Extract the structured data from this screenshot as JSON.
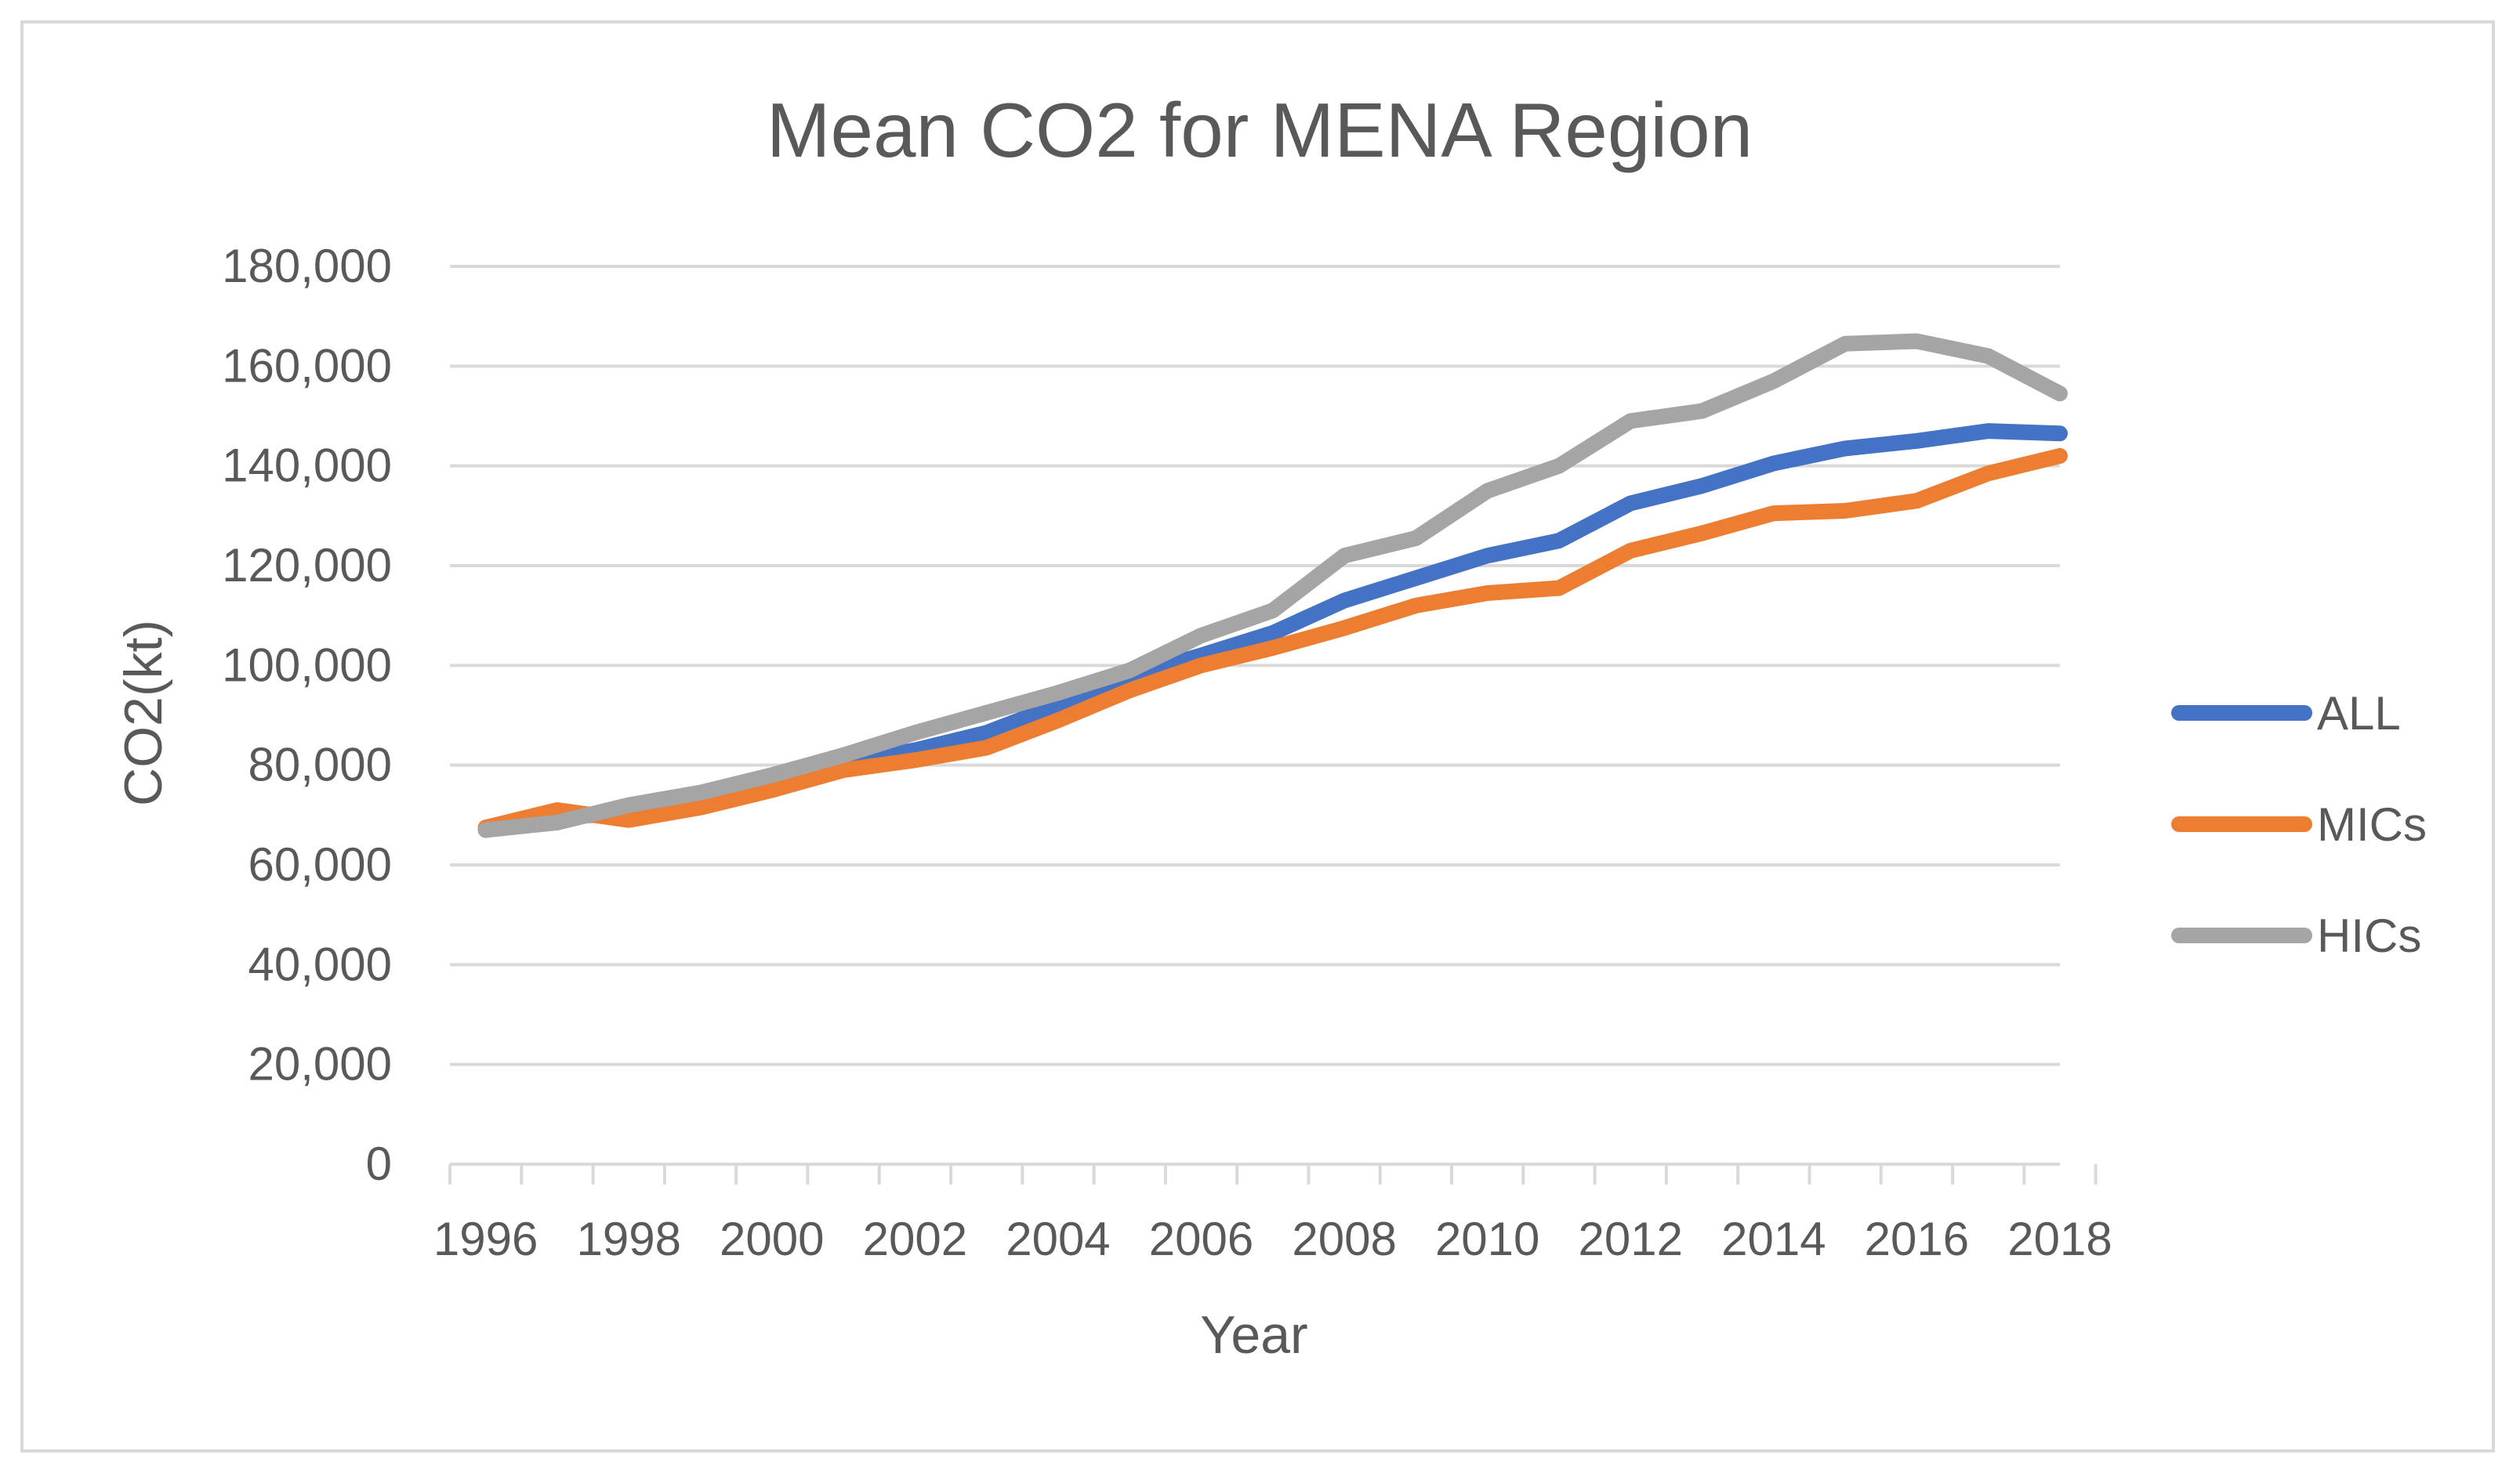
{
  "chart_data": {
    "type": "line",
    "title": "Mean CO2 for MENA Region",
    "xlabel": "Year",
    "ylabel": "CO2(kt)",
    "ylim": [
      0,
      180000
    ],
    "ytick_values": [
      0,
      20000,
      40000,
      60000,
      80000,
      100000,
      120000,
      140000,
      160000,
      180000
    ],
    "ytick_labels": [
      "0",
      "20,000",
      "40,000",
      "60,000",
      "80,000",
      "100,000",
      "120,000",
      "140,000",
      "160,000",
      "180,000"
    ],
    "xtick_labels": [
      "1996",
      "1998",
      "2000",
      "2002",
      "2004",
      "2006",
      "2008",
      "2010",
      "2012",
      "2014",
      "2016",
      "2018"
    ],
    "x": [
      1996,
      1997,
      1998,
      1999,
      2000,
      2001,
      2002,
      2003,
      2004,
      2005,
      2006,
      2007,
      2008,
      2009,
      2010,
      2011,
      2012,
      2013,
      2014,
      2015,
      2016,
      2017,
      2018
    ],
    "grid": true,
    "legend_position": "right",
    "series": [
      {
        "name": "ALL",
        "color": "#4472c4",
        "values": [
          67000,
          69500,
          70500,
          73500,
          77000,
          80500,
          83000,
          86500,
          92000,
          98000,
          102000,
          106500,
          113000,
          117500,
          122000,
          125000,
          132500,
          136000,
          140500,
          143500,
          145000,
          147000,
          146500
        ]
      },
      {
        "name": "MICs",
        "color": "#ed7d31",
        "values": [
          67500,
          71000,
          69000,
          71500,
          75000,
          79000,
          81000,
          83500,
          89000,
          95000,
          100000,
          103500,
          107500,
          112000,
          114500,
          115500,
          123000,
          126500,
          130500,
          131000,
          133000,
          138500,
          142000
        ]
      },
      {
        "name": "HICs",
        "color": "#a5a5a5",
        "values": [
          67000,
          68500,
          72000,
          74500,
          78000,
          82000,
          86500,
          90500,
          94500,
          99000,
          106000,
          111000,
          122000,
          125500,
          135000,
          140000,
          149000,
          151000,
          157000,
          164500,
          165000,
          162000,
          154500
        ]
      }
    ]
  }
}
